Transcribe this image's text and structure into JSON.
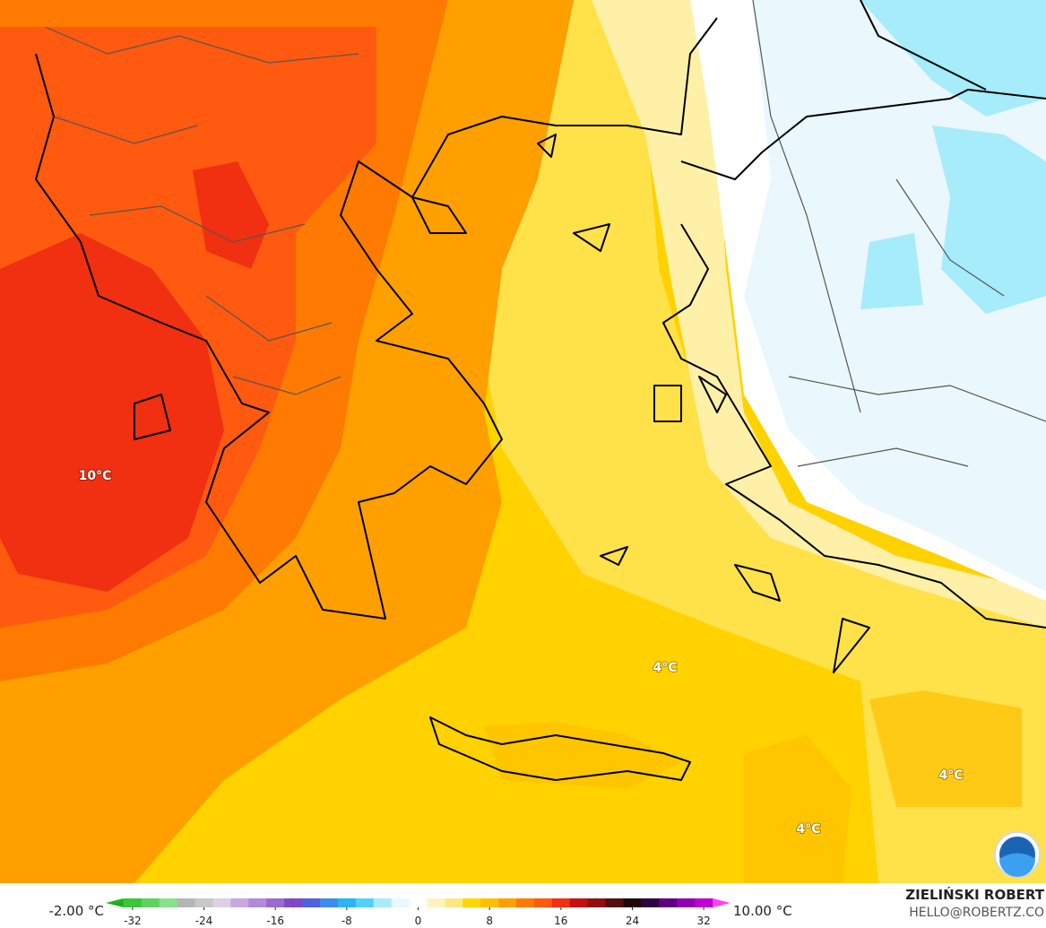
{
  "map": {
    "labels": [
      "10°C",
      "4°C",
      "4°C",
      "4°C"
    ]
  },
  "legend": {
    "min_label": "-2.00 °C",
    "max_label": "10.00 °C",
    "lim": [
      -35,
      35
    ],
    "ticks": [
      -32,
      -24,
      -16,
      -8,
      0,
      8,
      16,
      24,
      32
    ],
    "colors": [
      "#19b219",
      "#3cc43c",
      "#5ed35e",
      "#8ae08a",
      "#b5b5b5",
      "#c8c8c8",
      "#ddd0e6",
      "#c8a8e0",
      "#b18ad8",
      "#9a6ad0",
      "#8048c8",
      "#5060e0",
      "#3c8cf0",
      "#28b4f5",
      "#50d2f8",
      "#a6ecfb",
      "#e8f8fd",
      "#ffffff",
      "#fff3c0",
      "#ffe680",
      "#ffd700",
      "#ffbf00",
      "#ffa000",
      "#ff7a00",
      "#ff5a10",
      "#f03010",
      "#c81010",
      "#901010",
      "#501010",
      "#200808",
      "#300040",
      "#600080",
      "#9000b0",
      "#c000d0",
      "#ff40f0"
    ]
  },
  "credit": {
    "author": "ZIELIŃSKI ROBERT",
    "contact": "HELLO@ROBERTZ.CO"
  }
}
